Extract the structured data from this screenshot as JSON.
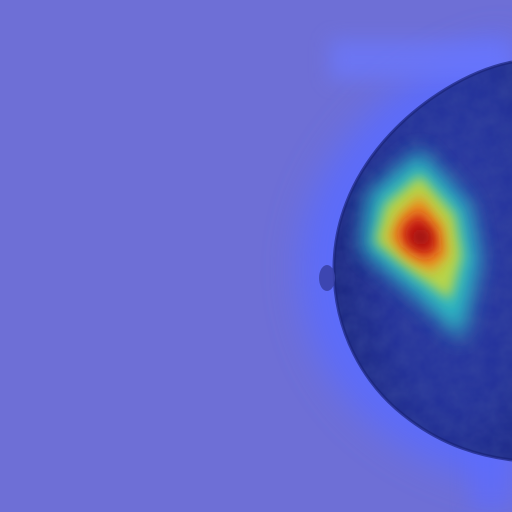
{
  "image": {
    "kind": "mammogram-heatmap-overlay",
    "colors": {
      "background": "#6e6fd6",
      "halo": "#5a6cff",
      "tissue_dark": "#1c2a8a",
      "tissue_mid": "#2a3aa8",
      "heat_cyan": "#2fd0c8",
      "heat_yellow": "#e8d43a",
      "heat_orange": "#f08a1c",
      "heat_red": "#c81818"
    }
  }
}
